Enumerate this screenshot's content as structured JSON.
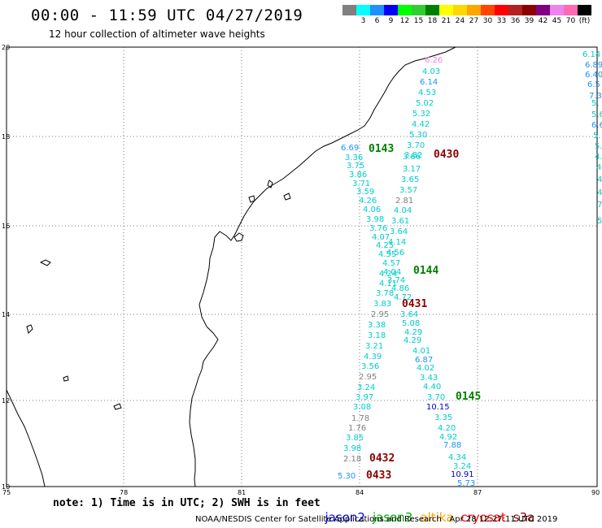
{
  "header": {
    "title": "00:00 - 11:59 UTC 04/27/2019",
    "subtitle": "12 hour collection of altimeter wave heights"
  },
  "scale": {
    "colors": [
      "#808080",
      "#00ffff",
      "#1e90ff",
      "#0000ff",
      "#00ff00",
      "#32cd32",
      "#008000",
      "#ffff00",
      "#ffd700",
      "#ffa500",
      "#ff4500",
      "#ff0000",
      "#b22222",
      "#8b0000",
      "#800080",
      "#ee82ee",
      "#ff69b4",
      "#000000"
    ],
    "labels": [
      "",
      "3",
      "6",
      "9",
      "12",
      "15",
      "18",
      "21",
      "24",
      "27",
      "30",
      "33",
      "36",
      "39",
      "42",
      "45",
      "70",
      "(ft)"
    ]
  },
  "axes": {
    "lon_ticks": [
      "75",
      "78",
      "81",
      "84",
      "87",
      "90"
    ],
    "lat_ticks": [
      "20",
      "18",
      "16",
      "14",
      "12",
      "10"
    ]
  },
  "passes": [
    {
      "label": "0143",
      "color": "#008000"
    },
    {
      "label": "0430",
      "color": "#8b0000"
    },
    {
      "label": "0144",
      "color": "#008000"
    },
    {
      "label": "0431",
      "color": "#8b0000"
    },
    {
      "label": "0145",
      "color": "#008000"
    },
    {
      "label": "0432",
      "color": "#8b0000"
    },
    {
      "label": "0433",
      "color": "#8b0000"
    }
  ],
  "readings": [
    {
      "text": "6.26",
      "color": "#ee82ee"
    },
    {
      "text": "4.03",
      "color": "#00cccc"
    },
    {
      "text": "6.14",
      "color": "#1e90ff"
    },
    {
      "text": "4.53",
      "color": "#00cccc"
    },
    {
      "text": "5.02",
      "color": "#00cccc"
    },
    {
      "text": "5.32",
      "color": "#00cccc"
    },
    {
      "text": "4.42",
      "color": "#00cccc"
    },
    {
      "text": "5.30",
      "color": "#00cccc"
    },
    {
      "text": "3.70",
      "color": "#00cccc"
    },
    {
      "text": "3.82",
      "color": "#00cccc"
    },
    {
      "text": "3.66",
      "color": "#00cccc"
    },
    {
      "text": "3.17",
      "color": "#00cccc"
    },
    {
      "text": "3.65",
      "color": "#00cccc"
    },
    {
      "text": "3.57",
      "color": "#00cccc"
    },
    {
      "text": "2.81",
      "color": "#808080"
    },
    {
      "text": "4.04",
      "color": "#00cccc"
    },
    {
      "text": "3.61",
      "color": "#00cccc"
    },
    {
      "text": "3.64",
      "color": "#00cccc"
    },
    {
      "text": "4.14",
      "color": "#00cccc"
    },
    {
      "text": "4.56",
      "color": "#00cccc"
    },
    {
      "text": "6.69",
      "color": "#1e90ff"
    },
    {
      "text": "3.36",
      "color": "#00cccc"
    },
    {
      "text": "3.75",
      "color": "#00cccc"
    },
    {
      "text": "3.86",
      "color": "#00cccc"
    },
    {
      "text": "3.71",
      "color": "#00cccc"
    },
    {
      "text": "3.59",
      "color": "#00cccc"
    },
    {
      "text": "4.26",
      "color": "#00cccc"
    },
    {
      "text": "4.06",
      "color": "#00cccc"
    },
    {
      "text": "3.98",
      "color": "#00cccc"
    },
    {
      "text": "3.76",
      "color": "#00cccc"
    },
    {
      "text": "4.07",
      "color": "#00cccc"
    },
    {
      "text": "4.25",
      "color": "#00cccc"
    },
    {
      "text": "4.55",
      "color": "#00cccc"
    },
    {
      "text": "4.57",
      "color": "#00cccc"
    },
    {
      "text": "4.04",
      "color": "#00cccc"
    },
    {
      "text": "4.24",
      "color": "#00cccc"
    },
    {
      "text": "3.74",
      "color": "#00cccc"
    },
    {
      "text": "4.11",
      "color": "#00cccc"
    },
    {
      "text": "4.86",
      "color": "#00cccc"
    },
    {
      "text": "3.78",
      "color": "#00cccc"
    },
    {
      "text": "4.72",
      "color": "#00cccc"
    },
    {
      "text": "3.83",
      "color": "#00cccc"
    },
    {
      "text": "2.95",
      "color": "#808080"
    },
    {
      "text": "3.64",
      "color": "#00cccc"
    },
    {
      "text": "3.38",
      "color": "#00cccc"
    },
    {
      "text": "5.08",
      "color": "#00cccc"
    },
    {
      "text": "3.18",
      "color": "#00cccc"
    },
    {
      "text": "4.29",
      "color": "#00cccc"
    },
    {
      "text": "4.29",
      "color": "#00cccc"
    },
    {
      "text": "3.21",
      "color": "#00cccc"
    },
    {
      "text": "4.01",
      "color": "#00cccc"
    },
    {
      "text": "4.39",
      "color": "#00cccc"
    },
    {
      "text": "6.87",
      "color": "#1e90ff"
    },
    {
      "text": "3.56",
      "color": "#00cccc"
    },
    {
      "text": "4.02",
      "color": "#00cccc"
    },
    {
      "text": "2.95",
      "color": "#808080"
    },
    {
      "text": "3.43",
      "color": "#00cccc"
    },
    {
      "text": "3.24",
      "color": "#00cccc"
    },
    {
      "text": "4.40",
      "color": "#00cccc"
    },
    {
      "text": "3.97",
      "color": "#00cccc"
    },
    {
      "text": "3.70",
      "color": "#00cccc"
    },
    {
      "text": "3.08",
      "color": "#00cccc"
    },
    {
      "text": "10.15",
      "color": "#0000cc"
    },
    {
      "text": "1.78",
      "color": "#808080"
    },
    {
      "text": "3.35",
      "color": "#00cccc"
    },
    {
      "text": "1.76",
      "color": "#808080"
    },
    {
      "text": "4.20",
      "color": "#00cccc"
    },
    {
      "text": "3.85",
      "color": "#00cccc"
    },
    {
      "text": "4.92",
      "color": "#00cccc"
    },
    {
      "text": "3.98",
      "color": "#00cccc"
    },
    {
      "text": "7.88",
      "color": "#1e90ff"
    },
    {
      "text": "2.18",
      "color": "#808080"
    },
    {
      "text": "4.34",
      "color": "#00cccc"
    },
    {
      "text": "3.24",
      "color": "#00cccc"
    },
    {
      "text": "5.30",
      "color": "#1e90ff"
    },
    {
      "text": "10.91",
      "color": "#0000cc"
    },
    {
      "text": "5.73",
      "color": "#1e90ff"
    },
    {
      "text": "6.14",
      "color": "#00cccc"
    },
    {
      "text": "6.89",
      "color": "#1e90ff"
    },
    {
      "text": "6.40",
      "color": "#1e90ff"
    },
    {
      "text": "6.5",
      "color": "#1e90ff"
    },
    {
      "text": "7.3",
      "color": "#1e90ff"
    },
    {
      "text": "5.",
      "color": "#00cccc"
    },
    {
      "text": "5.6",
      "color": "#00cccc"
    },
    {
      "text": "6.6",
      "color": "#1e90ff"
    },
    {
      "text": "5.",
      "color": "#00cccc"
    },
    {
      "text": "5.",
      "color": "#00cccc"
    },
    {
      "text": "4.",
      "color": "#00cccc"
    },
    {
      "text": "4.",
      "color": "#00cccc"
    },
    {
      "text": "4.",
      "color": "#00cccc"
    },
    {
      "text": "4",
      "color": "#00cccc"
    },
    {
      "text": "7",
      "color": "#00cccc"
    },
    {
      "text": "5.",
      "color": "#00cccc"
    },
    {
      "text": "4",
      "color": "#00cccc"
    }
  ],
  "footer": {
    "note": "note: 1) Time is in UTC; 2) SWH is in feet",
    "legend": [
      {
        "name": "jason2",
        "color": "#0000ff"
      },
      {
        "name": "jason3",
        "color": "#00aa00"
      },
      {
        "name": "altika",
        "color": "#ffa500"
      },
      {
        "name": "cryosat",
        "color": "#ff0000"
      },
      {
        "name": "s3a",
        "color": "#8b0000"
      }
    ],
    "credit": "NOAA/NESDIS Center for Satellite Applications and Research   Apr 28 12:27:11 UTC 2019"
  }
}
